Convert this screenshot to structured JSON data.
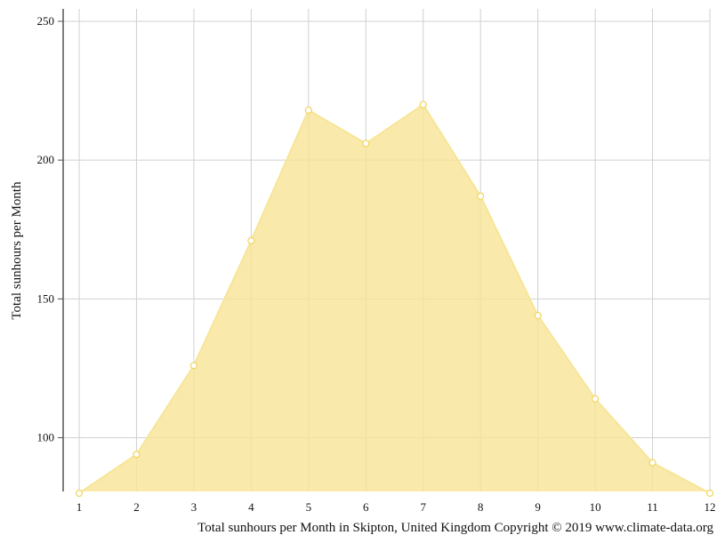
{
  "chart_data": {
    "type": "area",
    "x": [
      1,
      2,
      3,
      4,
      5,
      6,
      7,
      8,
      9,
      10,
      11,
      12
    ],
    "series": [
      {
        "values": [
          80,
          94,
          126,
          171,
          218,
          206,
          220,
          187,
          144,
          114,
          91,
          80
        ]
      }
    ],
    "xlabel": "",
    "ylabel": "Total sunhours per Month",
    "caption": "Total sunhours per Month in Skipton, United Kingdom Copyright © 2019 www.climate-data.org",
    "xlim": [
      1,
      12
    ],
    "ylim": [
      80,
      255
    ],
    "yticks": [
      100,
      150,
      200,
      250
    ],
    "xticks": [
      1,
      2,
      3,
      4,
      5,
      6,
      7,
      8,
      9,
      10,
      11,
      12
    ],
    "grid": true,
    "colors": {
      "fill": "#f7e596",
      "line": "#f7e596",
      "marker_stroke": "#f2d45c",
      "marker_fill": "#ffffff",
      "grid": "#d0d0d0",
      "axis": "#555555"
    }
  }
}
